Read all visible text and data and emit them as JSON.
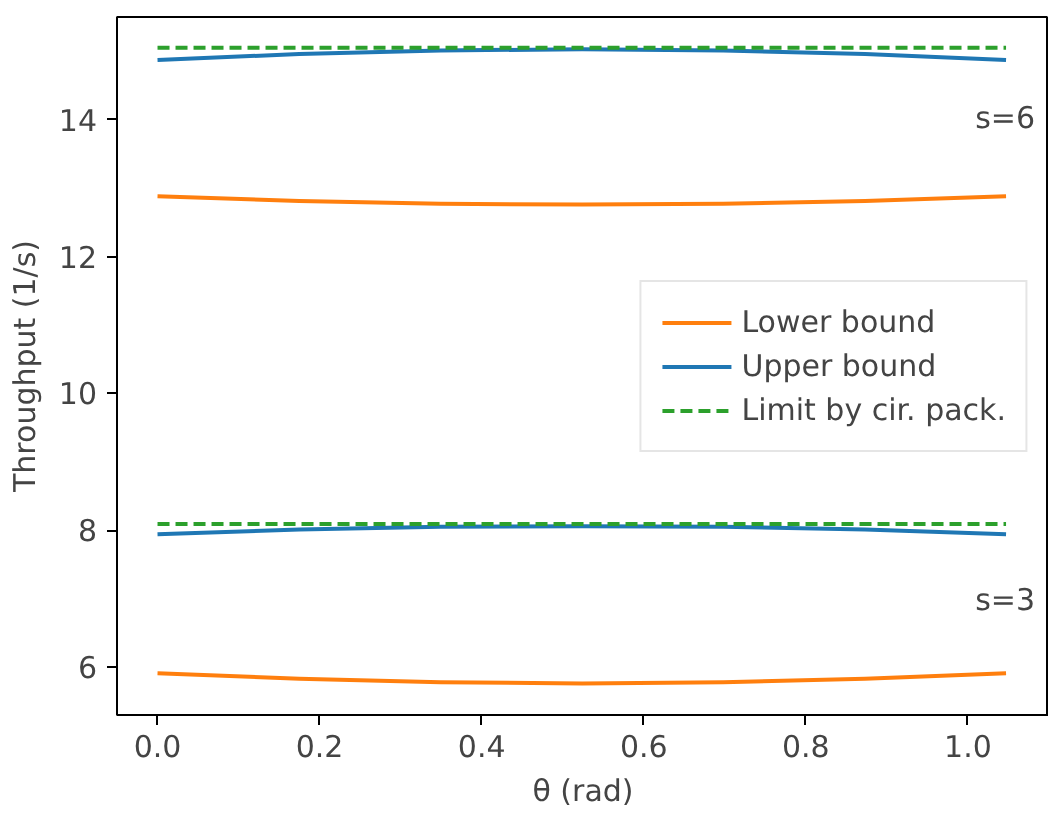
{
  "chart_data": {
    "type": "line",
    "xlabel": "θ (rad)",
    "ylabel": "Throughput (1/s)",
    "x": [
      0,
      0.175,
      0.349,
      0.524,
      0.698,
      0.873,
      1.047
    ],
    "series": [
      {
        "name": "Lower bound",
        "color": "#ff7f0e",
        "values": [
          12.88,
          12.81,
          12.77,
          12.76,
          12.77,
          12.81,
          12.88
        ]
      },
      {
        "name": "Upper bound",
        "color": "#1f77b4",
        "values": [
          14.87,
          14.96,
          15.01,
          15.03,
          15.01,
          14.96,
          14.87
        ]
      },
      {
        "name": "Limit by cir. pack.",
        "color": "#2ca02c",
        "line_style": "dashed",
        "values": [
          15.05,
          15.05,
          15.05,
          15.05,
          15.05,
          15.05,
          15.05
        ]
      },
      {
        "color": "#ff7f0e",
        "values": [
          5.91,
          5.83,
          5.78,
          5.76,
          5.78,
          5.83,
          5.91
        ]
      },
      {
        "color": "#1f77b4",
        "values": [
          7.94,
          8.01,
          8.05,
          8.06,
          8.05,
          8.01,
          7.94
        ]
      },
      {
        "color": "#2ca02c",
        "line_style": "dashed",
        "values": [
          8.09,
          8.09,
          8.09,
          8.09,
          8.09,
          8.09,
          8.09
        ]
      }
    ],
    "annotations": [
      "s=6",
      "s=3"
    ],
    "xlim": [
      -0.05,
      1.1
    ],
    "ylim": [
      5.3,
      15.5
    ],
    "xticks": [
      {
        "value": 0,
        "label": "0.0"
      },
      {
        "value": 0.2,
        "label": "0.2"
      },
      {
        "value": 0.4,
        "label": "0.4"
      },
      {
        "value": 0.6,
        "label": "0.6"
      },
      {
        "value": 0.8,
        "label": "0.8"
      },
      {
        "value": 1.0,
        "label": "1.0"
      }
    ],
    "yticks": [
      6,
      8,
      10,
      12,
      14
    ],
    "legend": "right",
    "grid": false,
    "marker": "none",
    "line_style": "solid"
  }
}
